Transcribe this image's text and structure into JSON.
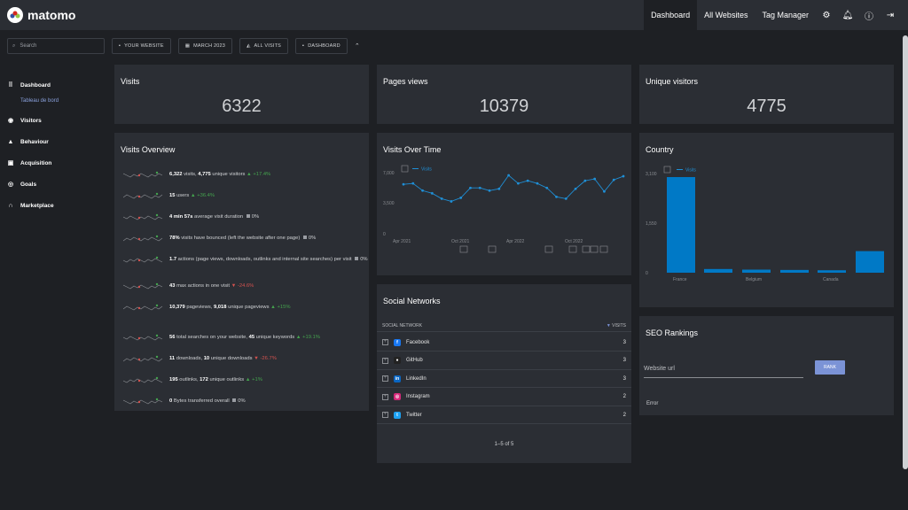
{
  "brand": {
    "name": "matomo"
  },
  "topnav": {
    "items": [
      "Dashboard",
      "All Websites",
      "Tag Manager"
    ],
    "icons": [
      "gear-icon",
      "bell-icon",
      "help-icon",
      "logout-icon"
    ]
  },
  "filters": {
    "search_placeholder": "Search",
    "website": "YOUR WEBSITE",
    "date": "MARCH 2023",
    "segment": "ALL VISITS",
    "dashboard": "DASHBOARD"
  },
  "sidebar": {
    "items": [
      {
        "label": "Dashboard",
        "icon": "grid-icon",
        "sub": "Tableau de bord"
      },
      {
        "label": "Visitors",
        "icon": "eye-icon"
      },
      {
        "label": "Behaviour",
        "icon": "bell-icon"
      },
      {
        "label": "Acquisition",
        "icon": "window-icon"
      },
      {
        "label": "Goals",
        "icon": "target-icon"
      },
      {
        "label": "Marketplace",
        "icon": "headphones-icon"
      }
    ]
  },
  "kpis": {
    "visits": {
      "title": "Visits",
      "value": "6322"
    },
    "pageviews": {
      "title": "Pages views",
      "value": "10379"
    },
    "unique": {
      "title": "Unique visitors",
      "value": "4775"
    }
  },
  "overview": {
    "title": "Visits Overview",
    "rows": [
      {
        "b1": "6,322",
        "t1": " visits, ",
        "b2": "4,775",
        "t2": " unique visitors ",
        "delta": "+17.4%",
        "dir": "up"
      },
      {
        "b1": "15",
        "t1": " users ",
        "b2": "",
        "t2": "",
        "delta": "+36.4%",
        "dir": "up"
      },
      {
        "b1": "4 min 57s",
        "t1": " average visit duration ",
        "b2": "",
        "t2": "",
        "delta": "0%",
        "dir": "flat"
      },
      {
        "b1": "78%",
        "t1": " visits have bounced (left the website after one page) ",
        "b2": "",
        "t2": "",
        "delta": "0%",
        "dir": "flat"
      },
      {
        "b1": "1.7",
        "t1": " actions (page views, downloads, outlinks and internal site searches) per visit ",
        "b2": "",
        "t2": "",
        "delta": "0%",
        "dir": "flat"
      },
      {
        "b1": "43",
        "t1": " max actions in one visit ",
        "b2": "",
        "t2": "",
        "delta": "-24.6%",
        "dir": "down"
      },
      {
        "b1": "10,379",
        "t1": " pageviews, ",
        "b2": "9,018",
        "t2": " unique pageviews ",
        "delta": "+15%",
        "dir": "up"
      },
      {
        "b1": "56",
        "t1": " total searches on your website, ",
        "b2": "45",
        "t2": " unique keywords ",
        "delta": "+19.1%",
        "dir": "up"
      },
      {
        "b1": "11",
        "t1": " downloads, ",
        "b2": "10",
        "t2": " unique downloads ",
        "delta": "-26.7%",
        "dir": "down"
      },
      {
        "b1": "195",
        "t1": " outlinks, ",
        "b2": "172",
        "t2": " unique outlinks ",
        "delta": "+1%",
        "dir": "up"
      },
      {
        "b1": "0",
        "t1": " Bytes transferred overall ",
        "b2": "",
        "t2": "",
        "delta": "0%",
        "dir": "flat"
      }
    ]
  },
  "visits_over_time": {
    "title": "Visits Over Time",
    "legend": "Visits",
    "yticks": [
      "7,000",
      "3,500",
      "0"
    ],
    "xticks": [
      "Apr 2021",
      "Oct 2021",
      "Apr 2022",
      "Oct 2022"
    ]
  },
  "country": {
    "title": "Country",
    "legend": "Visits",
    "yticks": [
      "3,100",
      "1,550",
      "0"
    ],
    "xticks": [
      "France",
      "Belgium",
      "Canada"
    ]
  },
  "social": {
    "title": "Social Networks",
    "col1": "SOCIAL NETWORK",
    "col2": "VISITS",
    "rows": [
      {
        "name": "Facebook",
        "value": "3",
        "color": "#1877f2",
        "glyph": "f"
      },
      {
        "name": "GitHub",
        "value": "3",
        "color": "#222222",
        "glyph": "●"
      },
      {
        "name": "LinkedIn",
        "value": "3",
        "color": "#0a66c2",
        "glyph": "in"
      },
      {
        "name": "Instagram",
        "value": "2",
        "color": "#d6297a",
        "glyph": "◎"
      },
      {
        "name": "Twitter",
        "value": "2",
        "color": "#1da1f2",
        "glyph": "t"
      }
    ],
    "pager": "1–5 of 5"
  },
  "seo": {
    "title": "SEO Rankings",
    "field": "Website url",
    "button": "RANK",
    "error": "Error"
  },
  "chart_data": [
    {
      "type": "line",
      "title": "Visits Over Time",
      "series": [
        {
          "name": "Visits",
          "values": [
            5800,
            5900,
            5100,
            4800,
            4200,
            3900,
            4300,
            5400,
            5400,
            5100,
            5300,
            6800,
            5900,
            6200,
            5900,
            5400,
            4400,
            4200,
            5300,
            6200,
            6400,
            5000,
            6300,
            6700
          ]
        }
      ],
      "ylim": [
        0,
        7000
      ]
    },
    {
      "type": "bar",
      "title": "Country",
      "categories": [
        "France",
        "",
        "Belgium",
        "",
        "Canada",
        ""
      ],
      "series": [
        {
          "name": "Visits",
          "values": [
            3100,
            120,
            100,
            90,
            80,
            700
          ]
        }
      ],
      "ylim": [
        0,
        3100
      ]
    }
  ]
}
